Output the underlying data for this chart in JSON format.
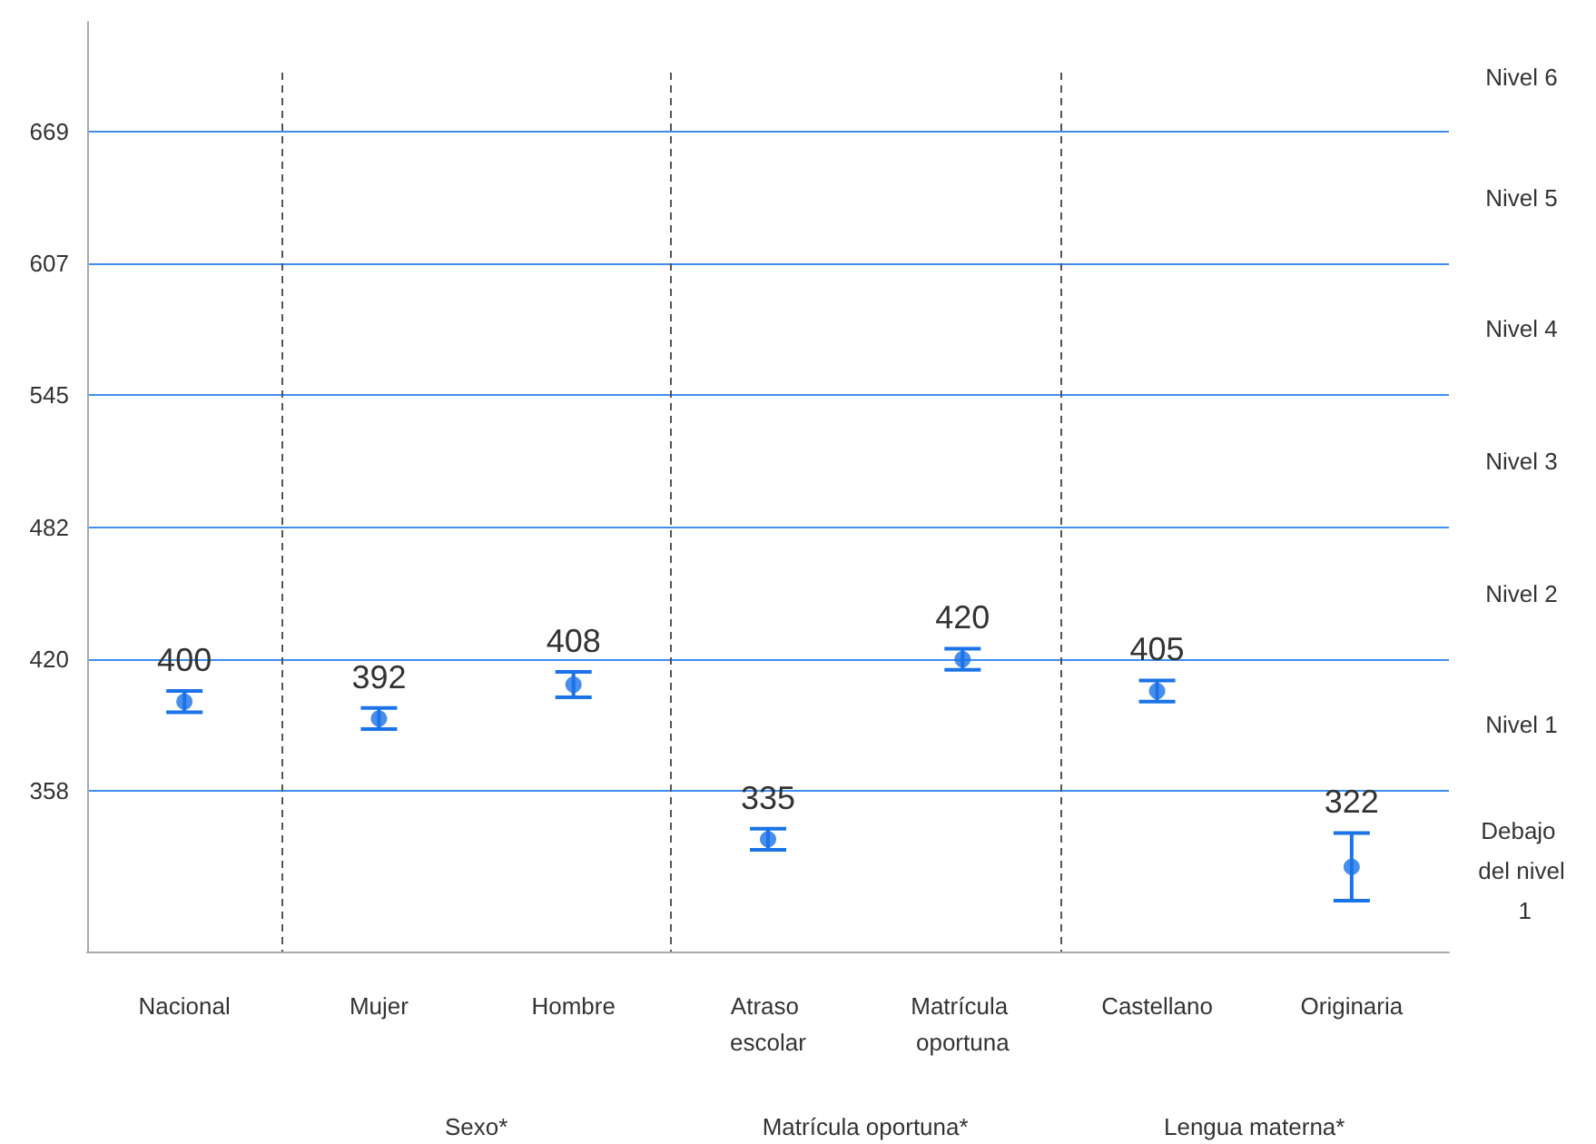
{
  "chart_data": {
    "type": "scatter",
    "categories": [
      "Nacional",
      "Mujer",
      "Hombre",
      "Atraso escolar",
      "Matrícula oportuna",
      "Castellano",
      "Originaria"
    ],
    "series": [
      {
        "color": "#1a73e8",
        "values": [
          400,
          392,
          408,
          335,
          420,
          405,
          322
        ],
        "errors": [
          5,
          5,
          6,
          5,
          5,
          5,
          16
        ]
      }
    ],
    "data_labels": true,
    "marker": "circle",
    "ylim": [
      282,
      721
    ],
    "yticks": [
      358,
      420,
      482,
      545,
      607,
      669
    ],
    "grid": "y",
    "annotations": [
      "Nivel 6",
      "Nivel 5",
      "Nivel 4",
      "Nivel 3",
      "Nivel 2",
      "Nivel 1",
      "Debajo del nivel 1",
      "Sexo*",
      "Matrícula oportuna*",
      "Lengua materna*"
    ]
  }
}
